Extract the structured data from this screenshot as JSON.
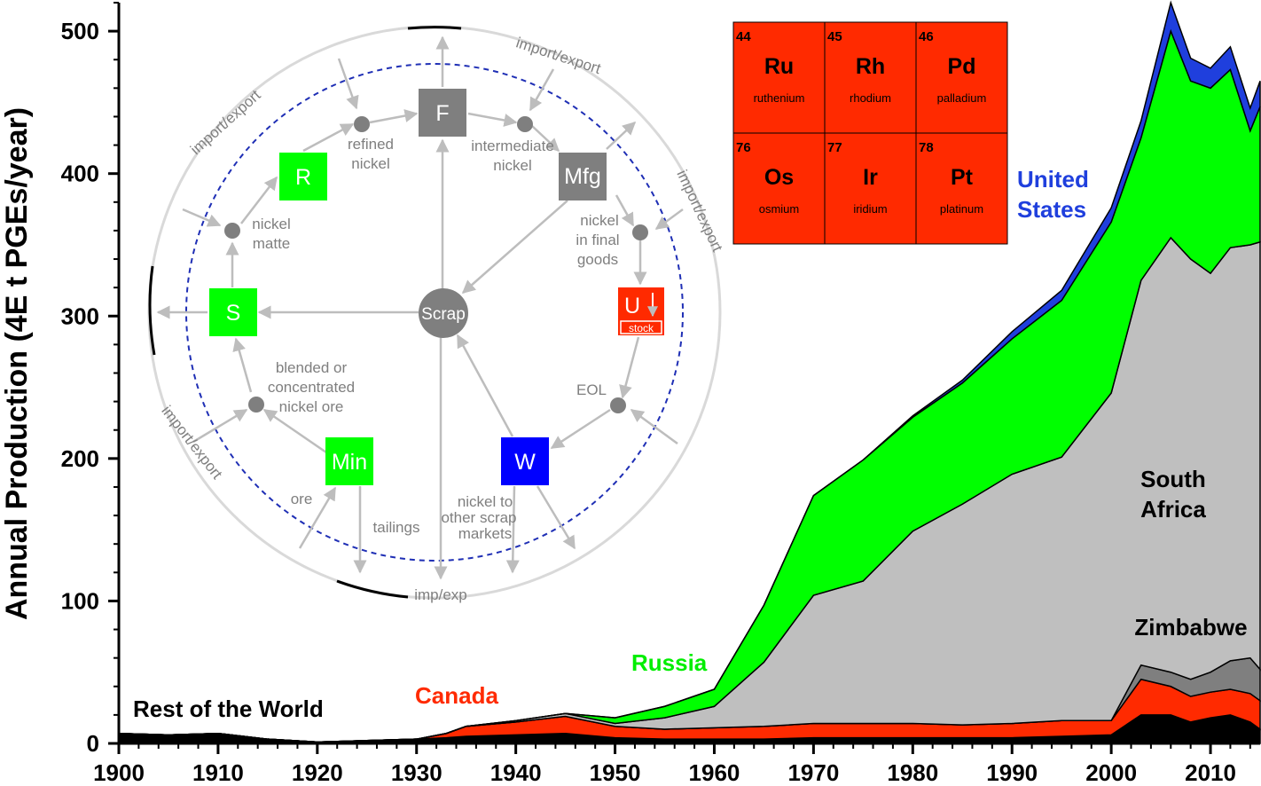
{
  "chart_data": {
    "type": "area",
    "stacked": true,
    "xlabel": "",
    "ylabel": "Annual Production (4E t PGEs/year)",
    "xlim": [
      1900,
      2015
    ],
    "ylim": [
      0,
      520
    ],
    "xticks": [
      "1900",
      "1910",
      "1920",
      "1930",
      "1940",
      "1950",
      "1960",
      "1970",
      "1980",
      "1990",
      "2000",
      "2010"
    ],
    "yticks": [
      "0",
      "100",
      "200",
      "300",
      "400",
      "500"
    ],
    "x": [
      1900,
      1905,
      1910,
      1915,
      1920,
      1925,
      1930,
      1933,
      1935,
      1940,
      1945,
      1950,
      1955,
      1960,
      1965,
      1970,
      1975,
      1980,
      1985,
      1990,
      1995,
      2000,
      2003,
      2006,
      2008,
      2010,
      2012,
      2014,
      2015
    ],
    "series": [
      {
        "name": "Rest of the World",
        "color": "#000000",
        "values": [
          7,
          6,
          7,
          3,
          1,
          2,
          3,
          4,
          5,
          6,
          7,
          4,
          3,
          3,
          3,
          4,
          4,
          4,
          4,
          4,
          5,
          6,
          20,
          20,
          15,
          18,
          20,
          15,
          10
        ]
      },
      {
        "name": "Canada",
        "color": "#ff2a00",
        "values": [
          0,
          0,
          0,
          0,
          0,
          0,
          0,
          3,
          7,
          9,
          12,
          8,
          7,
          8,
          9,
          10,
          10,
          10,
          9,
          10,
          11,
          10,
          25,
          20,
          18,
          18,
          18,
          20,
          20
        ]
      },
      {
        "name": "Zimbabwe",
        "color": "#7f7f7f",
        "values": [
          0,
          0,
          0,
          0,
          0,
          0,
          0,
          0,
          0,
          0,
          0,
          0,
          0,
          0,
          0,
          0,
          0,
          0,
          0,
          0,
          0,
          0,
          10,
          10,
          12,
          14,
          20,
          25,
          22
        ]
      },
      {
        "name": "South Africa",
        "color": "#bfbfbf",
        "values": [
          0,
          0,
          0,
          0,
          0,
          0,
          0,
          0,
          0,
          1,
          2,
          2,
          8,
          15,
          45,
          90,
          100,
          135,
          155,
          175,
          185,
          230,
          270,
          305,
          295,
          280,
          290,
          290,
          300
        ]
      },
      {
        "name": "Russia",
        "color": "#00ff00",
        "values": [
          0,
          0,
          0,
          0,
          0,
          0,
          0,
          0,
          0,
          0,
          0,
          4,
          8,
          12,
          40,
          70,
          85,
          80,
          85,
          95,
          110,
          120,
          100,
          145,
          125,
          130,
          125,
          80,
          95
        ]
      },
      {
        "name": "United States",
        "color": "#1f3fdd",
        "values": [
          0,
          0,
          0,
          0,
          0,
          0,
          0,
          0,
          0,
          0,
          0,
          0,
          0,
          0,
          0,
          0,
          0,
          1,
          2,
          5,
          7,
          10,
          12,
          20,
          16,
          14,
          16,
          16,
          18
        ]
      }
    ],
    "labels": {
      "rest_of_world": "Rest of the World",
      "canada": "Canada",
      "russia": "Russia",
      "south_africa_1": "South",
      "south_africa_2": "Africa",
      "zimbabwe": "Zimbabwe",
      "us_1": "United",
      "us_2": "States"
    }
  },
  "inset_cycle": {
    "nodes": {
      "F": "F",
      "Mfg": "Mfg",
      "U": "U",
      "stock": "stock",
      "W": "W",
      "Min": "Min",
      "S": "S",
      "R": "R",
      "Scrap": "Scrap"
    },
    "labels": {
      "refined_1": "refined",
      "refined_2": "nickel",
      "intermediate_1": "intermediate",
      "intermediate_2": "nickel",
      "final_1": "nickel",
      "final_2": "in final",
      "final_3": "goods",
      "matte_1": "nickel",
      "matte_2": "matte",
      "blended_1": "blended or",
      "blended_2": "concentrated",
      "blended_3": "nickel ore",
      "eol": "EOL",
      "ore": "ore",
      "tailings": "tailings",
      "other_1": "nickel to",
      "other_2": "other scrap",
      "other_3": "markets",
      "impexp": "imp/exp",
      "ie_top": "import/export",
      "ie_left": "import/export",
      "ie_right": "import/export",
      "ie_lowleft": "import/export"
    }
  },
  "periodic_table": [
    {
      "number": "44",
      "symbol": "Ru",
      "name": "ruthenium"
    },
    {
      "number": "45",
      "symbol": "Rh",
      "name": "rhodium"
    },
    {
      "number": "46",
      "symbol": "Pd",
      "name": "palladium"
    },
    {
      "number": "76",
      "symbol": "Os",
      "name": "osmium"
    },
    {
      "number": "77",
      "symbol": "Ir",
      "name": "iridium"
    },
    {
      "number": "78",
      "symbol": "Pt",
      "name": "platinum"
    }
  ],
  "colors": {
    "pt_cell": "#ff2a00",
    "inset_gray": "#7f7f7f",
    "inset_green": "#00ff00",
    "inset_blue": "#0000ff",
    "inset_red": "#ff2a00",
    "dashed_circle": "#1f2fb5"
  }
}
